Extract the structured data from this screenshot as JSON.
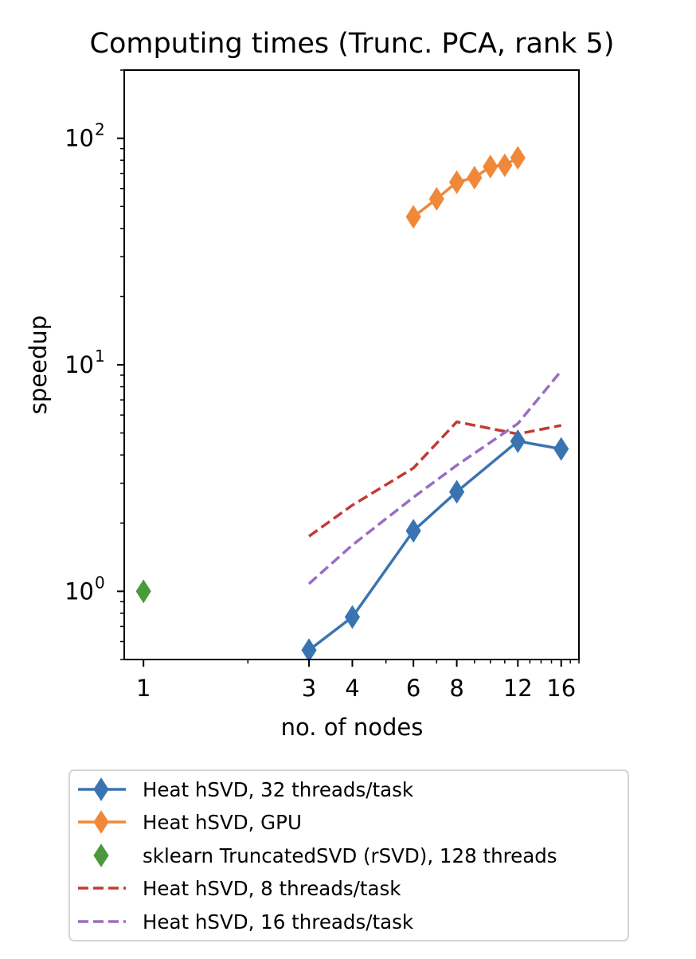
{
  "chart_data": {
    "type": "line",
    "title": "Computing times (Trunc. PCA, rank 5)",
    "xlabel": "no. of nodes",
    "ylabel": "speedup",
    "xscale": "log",
    "yscale": "log",
    "xlim": [
      0.88,
      18
    ],
    "ylim": [
      0.5,
      200
    ],
    "xticks": [
      {
        "value": 1,
        "label": "1"
      },
      {
        "value": 3,
        "label": "3"
      },
      {
        "value": 4,
        "label": "4"
      },
      {
        "value": 6,
        "label": "6"
      },
      {
        "value": 8,
        "label": "8"
      },
      {
        "value": 12,
        "label": "12"
      },
      {
        "value": 16,
        "label": "16"
      }
    ],
    "yticks": [
      {
        "value": 1,
        "base": "10",
        "exp": "0"
      },
      {
        "value": 10,
        "base": "10",
        "exp": "1"
      },
      {
        "value": 100,
        "base": "10",
        "exp": "2"
      }
    ],
    "grid": false,
    "legend_position": "below",
    "series": [
      {
        "name": "Heat hSVD, 32 threads/task",
        "color": "#3a74b0",
        "style": "solid",
        "marker": "diamond",
        "x": [
          3,
          4,
          6,
          8,
          12,
          16
        ],
        "y": [
          0.55,
          0.77,
          1.85,
          2.75,
          4.6,
          4.25
        ]
      },
      {
        "name": "Heat hSVD, GPU",
        "color": "#f0883a",
        "style": "solid",
        "marker": "diamond",
        "x": [
          6,
          7,
          8,
          9,
          10,
          11,
          12
        ],
        "y": [
          45,
          54,
          64,
          67,
          75,
          76,
          82
        ]
      },
      {
        "name": "sklearn TruncatedSVD (rSVD), 128 threads",
        "color": "#4a9a3d",
        "style": "none",
        "marker": "diamond",
        "x": [
          1
        ],
        "y": [
          1.0
        ]
      },
      {
        "name": "Heat hSVD, 8 threads/task",
        "color": "#c23b35",
        "style": "dashed",
        "marker": "none",
        "x": [
          3,
          4,
          6,
          8,
          12,
          16
        ],
        "y": [
          1.75,
          2.4,
          3.5,
          5.6,
          4.95,
          5.4
        ]
      },
      {
        "name": "Heat hSVD, 16 threads/task",
        "color": "#9a6cc4",
        "style": "dashed",
        "marker": "none",
        "x": [
          3,
          4,
          6,
          8,
          12,
          16
        ],
        "y": [
          1.08,
          1.6,
          2.6,
          3.6,
          5.5,
          9.4
        ]
      }
    ]
  }
}
